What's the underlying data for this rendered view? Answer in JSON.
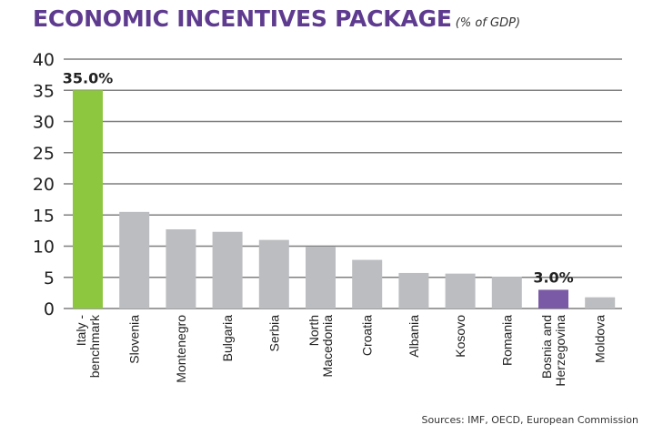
{
  "title": "ECONOMIC INCENTIVES PACKAGE",
  "subtitle": "(% of GDP)",
  "source": "Sources: IMF, OECD, European Commission",
  "colors": {
    "title": "#5e3b8f",
    "highlight_benchmark": "#8dc63f",
    "highlight_target": "#7a5aa6",
    "default_bar": "#bcbdc0",
    "grid": "#7f7f7f"
  },
  "chart_data": {
    "type": "bar",
    "title": "ECONOMIC INCENTIVES PACKAGE",
    "subtitle": "(% of GDP)",
    "xlabel": "",
    "ylabel": "",
    "ylim": [
      0,
      40
    ],
    "yticks": [
      0,
      5,
      10,
      15,
      20,
      25,
      30,
      35,
      40
    ],
    "grid": true,
    "legend": "none",
    "categories": [
      [
        "Italy -",
        "benchmark"
      ],
      [
        "Slovenia"
      ],
      [
        "Montenegro"
      ],
      [
        "Bulgaria"
      ],
      [
        "Serbia"
      ],
      [
        "North",
        "Macedonia"
      ],
      [
        "Croatia"
      ],
      [
        "Albania"
      ],
      [
        "Kosovo"
      ],
      [
        "Romania"
      ],
      [
        "Bosnia and",
        "Herzegovina"
      ],
      [
        "Moldova"
      ]
    ],
    "values": [
      35.0,
      15.5,
      12.7,
      12.3,
      11.0,
      9.9,
      7.8,
      5.7,
      5.6,
      5.1,
      3.0,
      1.8
    ],
    "bar_colors": [
      "highlight_benchmark",
      "default_bar",
      "default_bar",
      "default_bar",
      "default_bar",
      "default_bar",
      "default_bar",
      "default_bar",
      "default_bar",
      "default_bar",
      "highlight_target",
      "default_bar"
    ],
    "data_labels": [
      {
        "index": 0,
        "text": "35.0%"
      },
      {
        "index": 10,
        "text": "3.0%"
      }
    ]
  }
}
